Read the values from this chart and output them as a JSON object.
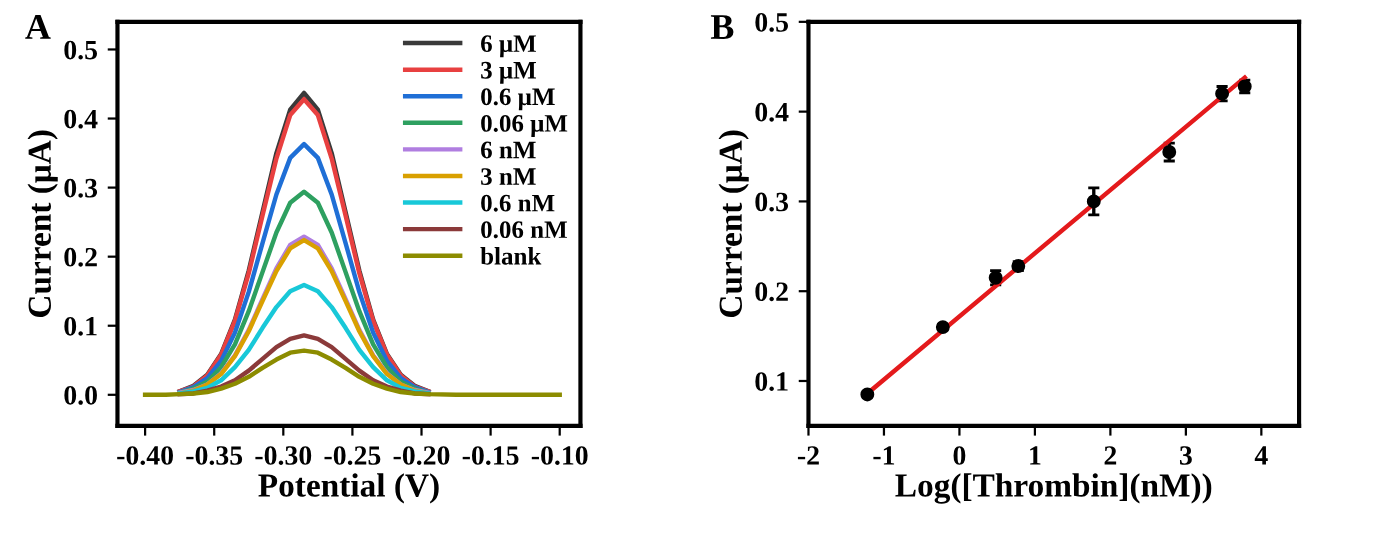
{
  "chart_data": [
    {
      "type": "line",
      "annotations": [
        "A"
      ],
      "xlabel": "Potential (V)",
      "ylabel": "Current (μA)",
      "legend": "top right",
      "grid": false,
      "x": [
        -0.4,
        -0.385,
        -0.375,
        -0.365,
        -0.355,
        -0.345,
        -0.335,
        -0.325,
        -0.315,
        -0.305,
        -0.295,
        -0.285,
        -0.275,
        -0.265,
        -0.255,
        -0.245,
        -0.235,
        -0.225,
        -0.215,
        -0.205,
        -0.195,
        -0.175,
        -0.15,
        -0.125,
        -0.1
      ],
      "series": [
        {
          "name": "6 μM",
          "color": "#3a3a3a",
          "values": [
            null,
            null,
            0.005,
            0.013,
            0.029,
            0.059,
            0.109,
            0.18,
            0.265,
            0.35,
            0.413,
            0.437,
            0.413,
            0.35,
            0.265,
            0.18,
            0.109,
            0.059,
            0.029,
            0.013,
            0.005,
            null,
            null,
            null,
            null
          ]
        },
        {
          "name": "3 μM",
          "color": "#e84040",
          "values": [
            null,
            null,
            0.005,
            0.012,
            0.028,
            0.058,
            0.107,
            0.176,
            0.26,
            0.342,
            0.405,
            0.428,
            0.405,
            0.342,
            0.26,
            0.176,
            0.107,
            0.058,
            0.028,
            0.012,
            0.005,
            null,
            null,
            null,
            null
          ]
        },
        {
          "name": "0.6 μM",
          "color": "#1f6fd6",
          "values": [
            null,
            null,
            0.004,
            0.011,
            0.024,
            0.049,
            0.09,
            0.149,
            0.22,
            0.29,
            0.343,
            0.363,
            0.343,
            0.29,
            0.22,
            0.149,
            0.09,
            0.049,
            0.024,
            0.011,
            0.004,
            null,
            null,
            null,
            null
          ]
        },
        {
          "name": "0.06 μM",
          "color": "#2ea060",
          "values": [
            null,
            null,
            0.003,
            0.009,
            0.019,
            0.04,
            0.073,
            0.121,
            0.178,
            0.235,
            0.278,
            0.294,
            0.278,
            0.235,
            0.178,
            0.121,
            0.073,
            0.04,
            0.019,
            0.009,
            0.003,
            null,
            null,
            null,
            null
          ]
        },
        {
          "name": "6 nM",
          "color": "#b07ee0",
          "values": [
            null,
            null,
            0.003,
            0.007,
            0.015,
            0.031,
            0.057,
            0.094,
            0.139,
            0.183,
            0.217,
            0.229,
            0.217,
            0.183,
            0.139,
            0.094,
            0.057,
            0.031,
            0.015,
            0.007,
            0.003,
            null,
            null,
            null,
            null
          ]
        },
        {
          "name": "3 nM",
          "color": "#d9a000",
          "values": [
            null,
            null,
            0.002,
            0.006,
            0.015,
            0.03,
            0.056,
            0.092,
            0.136,
            0.179,
            0.212,
            0.224,
            0.212,
            0.179,
            0.136,
            0.092,
            0.056,
            0.03,
            0.015,
            0.006,
            0.002,
            null,
            null,
            null,
            null
          ]
        },
        {
          "name": "0.6 nM",
          "color": "#18c8d8",
          "values": [
            null,
            null,
            0.002,
            0.005,
            0.01,
            0.021,
            0.04,
            0.065,
            0.097,
            0.127,
            0.15,
            0.159,
            0.15,
            0.127,
            0.097,
            0.065,
            0.04,
            0.021,
            0.01,
            0.005,
            0.002,
            null,
            null,
            null,
            null
          ]
        },
        {
          "name": "0.06 nM",
          "color": "#8b3a3a",
          "values": [
            null,
            null,
            0.001,
            0.002,
            0.006,
            0.012,
            0.021,
            0.035,
            0.052,
            0.069,
            0.081,
            0.086,
            0.081,
            0.069,
            0.052,
            0.035,
            0.021,
            0.012,
            0.006,
            0.002,
            0.001,
            null,
            null,
            null,
            null
          ]
        },
        {
          "name": "blank",
          "color": "#8c8c00",
          "values": [
            0,
            0,
            0.001,
            0.002,
            0.004,
            0.009,
            0.016,
            0.026,
            0.039,
            0.051,
            0.061,
            0.064,
            0.061,
            0.051,
            0.039,
            0.026,
            0.016,
            0.009,
            0.004,
            0.002,
            0.001,
            0,
            0,
            0,
            0
          ]
        }
      ],
      "xlim": [
        -0.42,
        -0.085
      ],
      "ylim": [
        -0.045,
        0.54
      ],
      "xticks": [
        {
          "value": -0.4,
          "label": "-0.40"
        },
        {
          "value": -0.35,
          "label": "-0.35"
        },
        {
          "value": -0.3,
          "label": "-0.30"
        },
        {
          "value": -0.25,
          "label": "-0.25"
        },
        {
          "value": -0.2,
          "label": "-0.20"
        },
        {
          "value": -0.15,
          "label": "-0.15"
        },
        {
          "value": -0.1,
          "label": "-0.10"
        }
      ],
      "yticks": [
        {
          "value": 0,
          "label": "0.0"
        },
        0.1,
        0.2,
        0.3,
        0.4,
        0.5
      ]
    },
    {
      "type": "scatter",
      "annotations": [
        "B"
      ],
      "xlabel": "Log([Thrombin](nM))",
      "ylabel": "Current (μA)",
      "grid": false,
      "series": [
        {
          "type": "scatter",
          "marker": "circle",
          "color": "#000000",
          "x": [
            -1.22,
            -0.22,
            0.48,
            0.78,
            1.78,
            2.78,
            3.48,
            3.78
          ],
          "values": [
            0.085,
            0.16,
            0.215,
            0.228,
            0.3,
            0.355,
            0.42,
            0.428
          ],
          "errors": [
            0.003,
            0.003,
            0.008,
            0.005,
            0.015,
            0.01,
            0.008,
            0.007
          ]
        },
        {
          "type": "line",
          "color": "#e41a1c",
          "x": [
            -1.22,
            3.78
          ],
          "values": [
            0.086,
            0.438
          ]
        }
      ],
      "xlim": [
        -2,
        4.5
      ],
      "ylim": [
        0.05,
        0.5
      ],
      "xticks": [
        -2,
        -1,
        0,
        1,
        2,
        3,
        4
      ],
      "yticks": [
        0.1,
        0.2,
        0.3,
        0.4,
        0.5
      ]
    }
  ]
}
